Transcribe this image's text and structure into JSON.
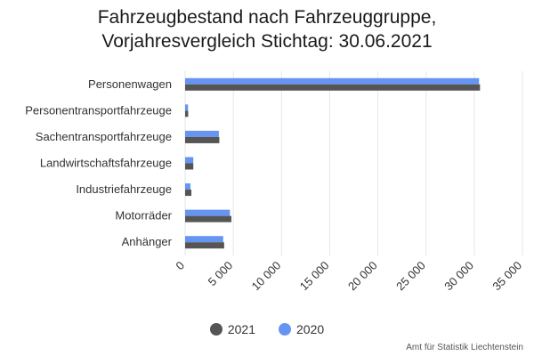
{
  "chart_data": {
    "type": "bar",
    "orientation": "horizontal",
    "title": [
      "Fahrzeugbestand nach Fahrzeuggruppe,",
      "Vorjahresvergleich Stichtag: 30.06.2021"
    ],
    "categories": [
      "Personenwagen",
      "Personentransportfahrzeuge",
      "Sachentransportfahrzeuge",
      "Landwirtschaftsfahrzeuge",
      "Industriefahrzeuge",
      "Motorräder",
      "Anhänger"
    ],
    "series": [
      {
        "name": "2020",
        "color": "#6694f2",
        "values": [
          30500,
          300,
          3500,
          850,
          550,
          4650,
          3950
        ]
      },
      {
        "name": "2021",
        "color": "#555555",
        "values": [
          30600,
          320,
          3550,
          850,
          650,
          4800,
          4050
        ]
      }
    ],
    "legend_order": [
      "2021",
      "2020"
    ],
    "legend_position": "bottom-center",
    "xlim": [
      0,
      35000
    ],
    "xticks": [
      0,
      5000,
      10000,
      15000,
      20000,
      25000,
      30000,
      35000
    ],
    "xtick_labels": [
      "0",
      "5 000",
      "10 000",
      "15 000",
      "20 000",
      "25 000",
      "30 000",
      "35 000"
    ],
    "grid": true,
    "credits": "Amt für Statistik Liechtenstein"
  }
}
